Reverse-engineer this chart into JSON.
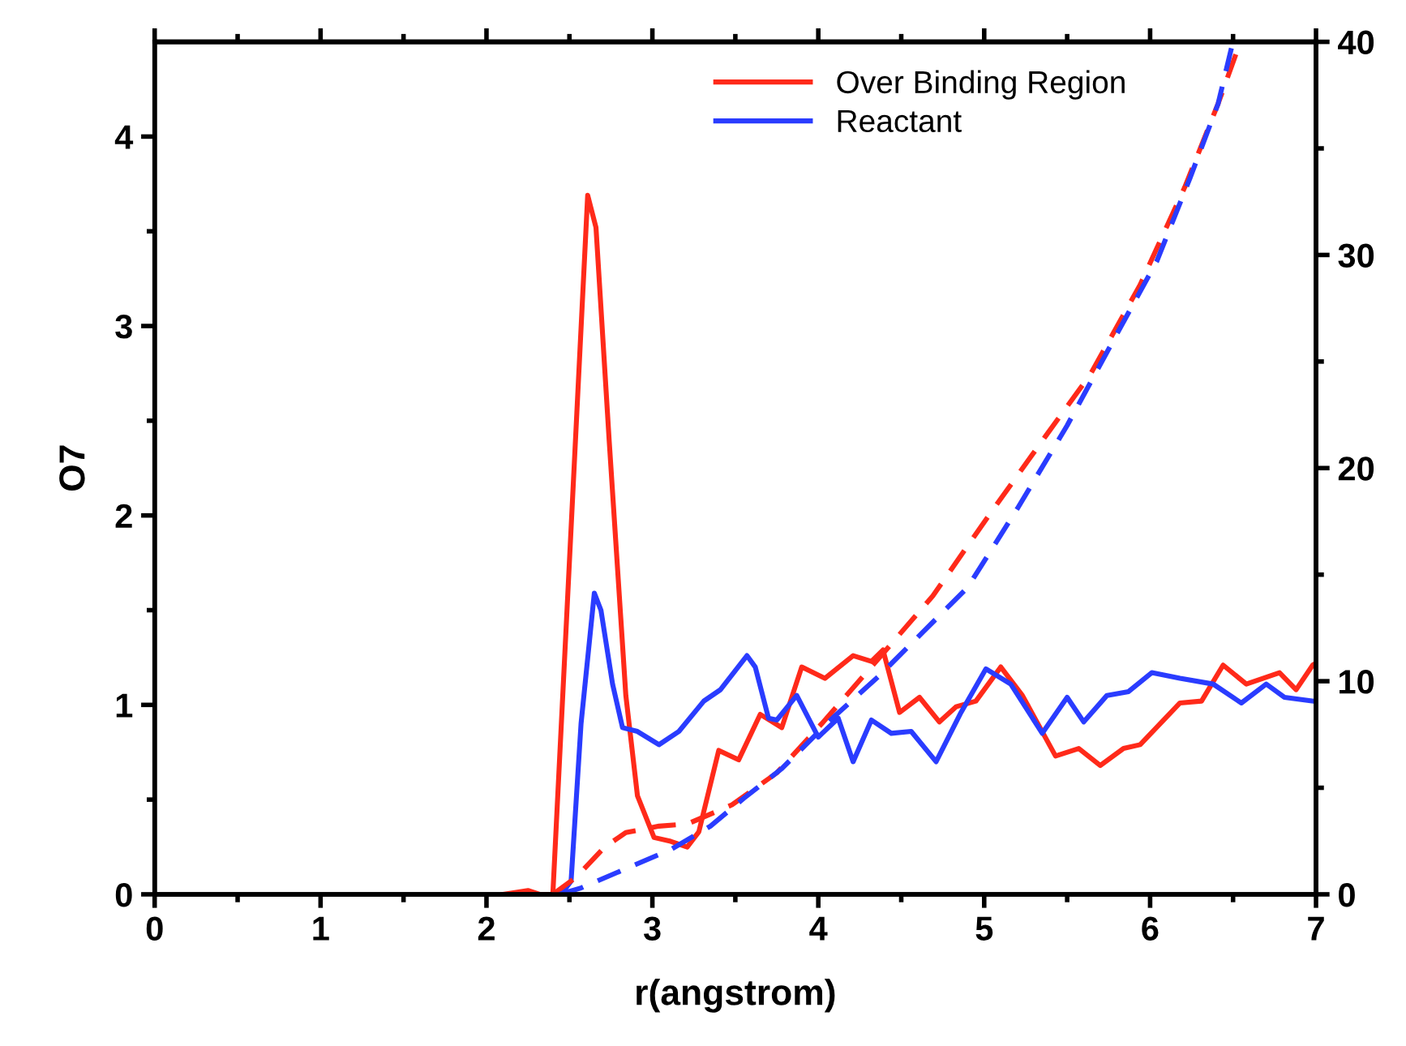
{
  "chart_data": {
    "type": "line",
    "xlabel": "r(angstrom)",
    "ylabel": "O7",
    "xlim": [
      0,
      7
    ],
    "xticks": [
      0,
      1,
      2,
      3,
      4,
      5,
      6,
      7
    ],
    "ylim": [
      0,
      4.5
    ],
    "yticks": [
      0,
      1,
      2,
      3,
      4
    ],
    "y2lim": [
      0,
      40
    ],
    "y2ticks": [
      0,
      10,
      20,
      30,
      40
    ],
    "legend": "top",
    "grid": false,
    "marker": "none",
    "series": [
      {
        "name": "Over Binding Region",
        "color": "#ff2a1a",
        "line_style": "solid",
        "x": [
          2.1,
          2.25,
          2.32,
          2.4,
          2.61,
          2.66,
          2.74,
          2.84,
          2.91,
          3.01,
          3.11,
          3.21,
          3.28,
          3.4,
          3.52,
          3.65,
          3.78,
          3.9,
          4.04,
          4.21,
          4.32,
          4.39,
          4.49,
          4.61,
          4.73,
          4.83,
          4.95,
          5.1,
          5.23,
          5.43,
          5.57,
          5.7,
          5.84,
          5.94,
          6.18,
          6.31,
          6.44,
          6.58,
          6.78,
          6.88,
          6.98,
          7
        ],
        "values": [
          0,
          0.02,
          0,
          0,
          3.69,
          3.52,
          2.39,
          1.05,
          0.52,
          0.3,
          0.28,
          0.25,
          0.33,
          0.76,
          0.71,
          0.95,
          0.88,
          1.2,
          1.14,
          1.26,
          1.23,
          1.29,
          0.96,
          1.04,
          0.91,
          0.99,
          1.02,
          1.2,
          1.05,
          0.73,
          0.77,
          0.68,
          0.77,
          0.79,
          1.01,
          1.02,
          1.21,
          1.11,
          1.17,
          1.08,
          1.21,
          1.22
        ]
      },
      {
        "name": "Reactant",
        "color": "#2a3cff",
        "line_style": "solid",
        "x": [
          2.45,
          2.51,
          2.57,
          2.65,
          2.69,
          2.76,
          2.82,
          2.91,
          3.04,
          3.16,
          3.31,
          3.41,
          3.57,
          3.62,
          3.7,
          3.75,
          3.87,
          4.0,
          4.12,
          4.21,
          4.32,
          4.44,
          4.56,
          4.71,
          4.86,
          5.01,
          5.16,
          5.35,
          5.5,
          5.6,
          5.74,
          5.87,
          6.01,
          6.18,
          6.38,
          6.55,
          6.7,
          6.81,
          6.98
        ],
        "values": [
          0,
          0.07,
          0.9,
          1.59,
          1.5,
          1.11,
          0.88,
          0.86,
          0.79,
          0.86,
          1.02,
          1.08,
          1.26,
          1.2,
          0.93,
          0.92,
          1.05,
          0.83,
          0.93,
          0.7,
          0.92,
          0.85,
          0.86,
          0.7,
          0.96,
          1.19,
          1.11,
          0.85,
          1.04,
          0.91,
          1.05,
          1.07,
          1.17,
          1.14,
          1.11,
          1.01,
          1.11,
          1.04,
          1.02
        ]
      },
      {
        "color": "#ff2a1a",
        "axis": "y2",
        "line_style": "dashed",
        "x": [
          2.4,
          2.54,
          2.71,
          2.84,
          3.04,
          3.21,
          3.48,
          3.75,
          4.02,
          4.39,
          4.69,
          5.03,
          5.37,
          5.64,
          5.94,
          6.21,
          6.41,
          6.53
        ],
        "values": [
          0,
          0.8,
          2.2,
          2.9,
          3.2,
          3.3,
          4.2,
          5.7,
          8.0,
          11.3,
          14.0,
          17.8,
          21.5,
          24.4,
          28.6,
          33.2,
          37.1,
          39.7
        ]
      },
      {
        "color": "#2a3cff",
        "axis": "y2",
        "line_style": "dashed",
        "x": [
          2.44,
          2.57,
          2.81,
          3.11,
          3.35,
          3.55,
          3.78,
          4.09,
          4.36,
          4.63,
          4.9,
          5.2,
          5.5,
          5.8,
          6.04,
          6.24,
          6.41,
          6.49
        ],
        "values": [
          0,
          0.3,
          1.1,
          2.1,
          3.2,
          4.5,
          5.9,
          8.3,
          10.2,
          12.3,
          14.4,
          18.1,
          22.0,
          26.3,
          29.7,
          33.6,
          37.1,
          39.7
        ]
      }
    ]
  }
}
